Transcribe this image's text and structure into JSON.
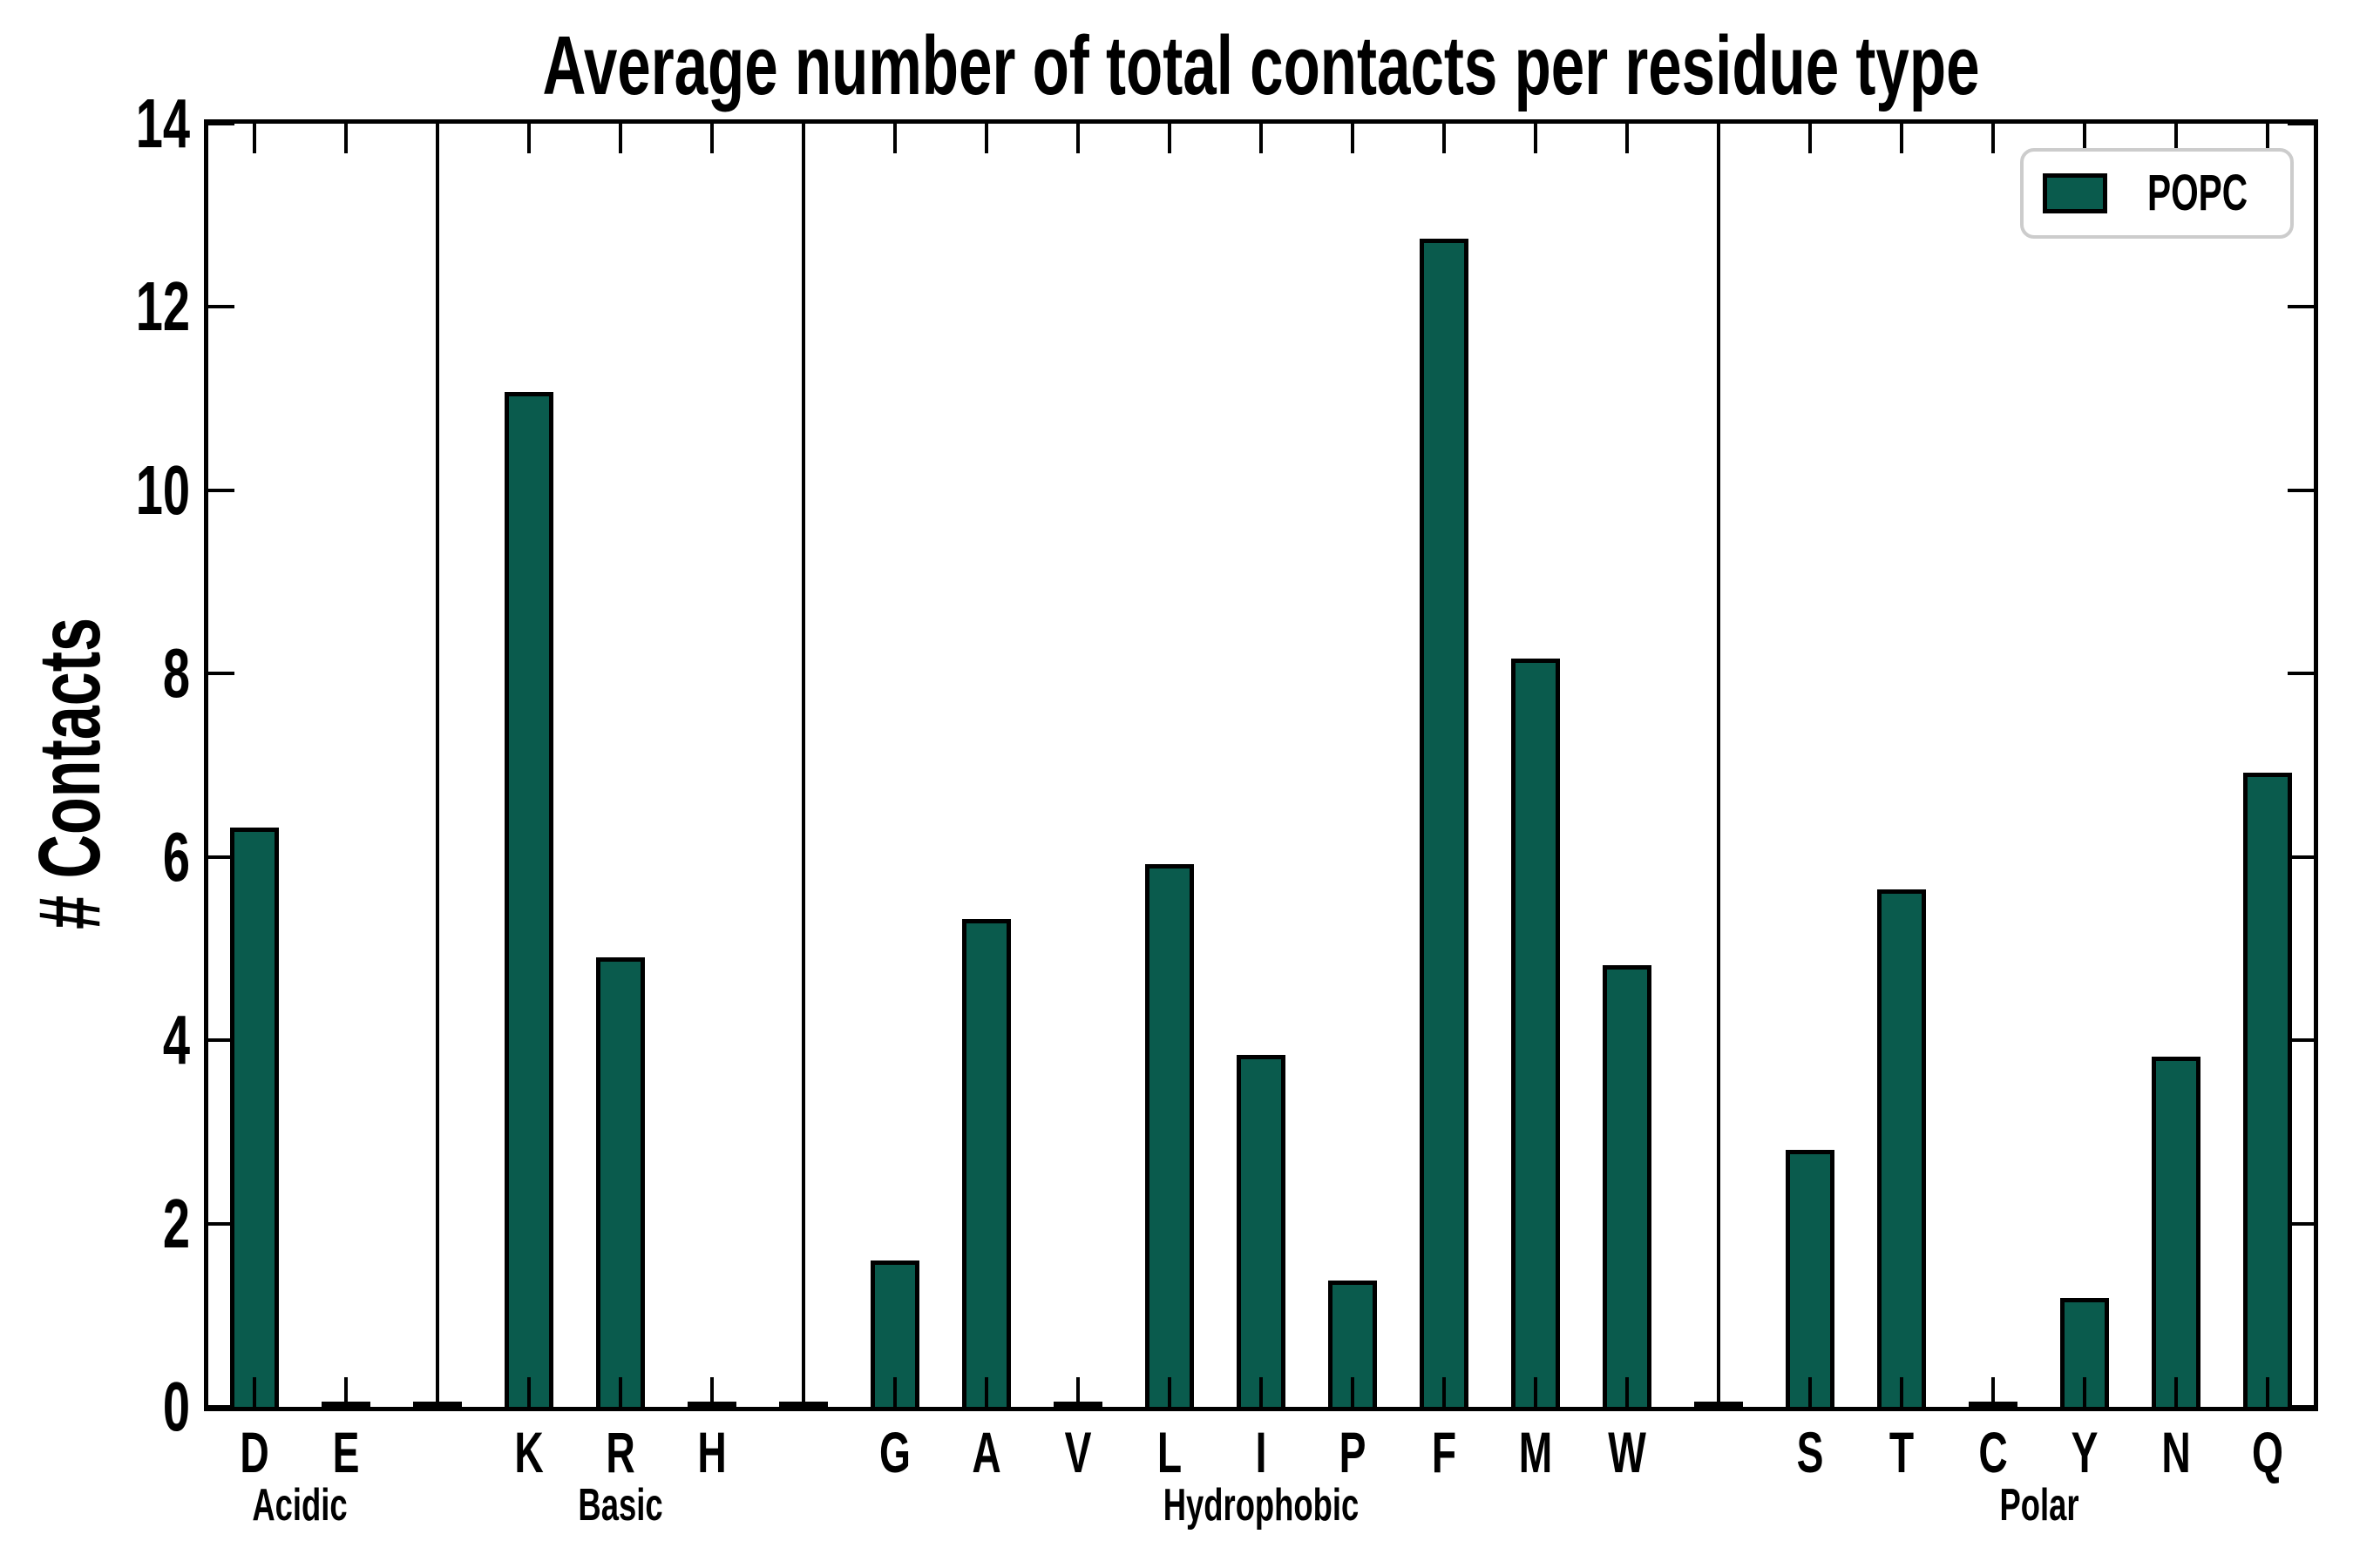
{
  "chart_data": {
    "type": "bar",
    "title": "Average number of total contacts per residue type",
    "ylabel": "# Contacts",
    "xlabel": "",
    "ylim": [
      0,
      14
    ],
    "yticks": [
      0,
      2,
      4,
      6,
      8,
      10,
      12,
      14
    ],
    "grid": false,
    "legend": {
      "label": "POPC",
      "position": "upper right"
    },
    "colors": {
      "bar_fill": "#0A5B4D",
      "bar_edge": "#000000",
      "axis": "#000000",
      "legend_border": "#CCCCCC"
    },
    "group_separators": true,
    "groups": [
      {
        "label": "Acidic",
        "categories": [
          "D",
          "E"
        ],
        "values": [
          6.32,
          0
        ]
      },
      {
        "label": "Basic",
        "categories": [
          "K",
          "R",
          "H"
        ],
        "values": [
          11.07,
          4.9,
          0
        ]
      },
      {
        "label": "Hydrophobic",
        "categories": [
          "G",
          "A",
          "V",
          "L",
          "I",
          "P",
          "F",
          "M",
          "W"
        ],
        "values": [
          1.6,
          5.32,
          0,
          5.92,
          3.84,
          1.38,
          12.75,
          8.16,
          4.82
        ]
      },
      {
        "label": "Polar",
        "categories": [
          "S",
          "T",
          "C",
          "Y",
          "N",
          "Q"
        ],
        "values": [
          2.8,
          5.65,
          0,
          1.19,
          3.82,
          6.92
        ]
      }
    ]
  }
}
